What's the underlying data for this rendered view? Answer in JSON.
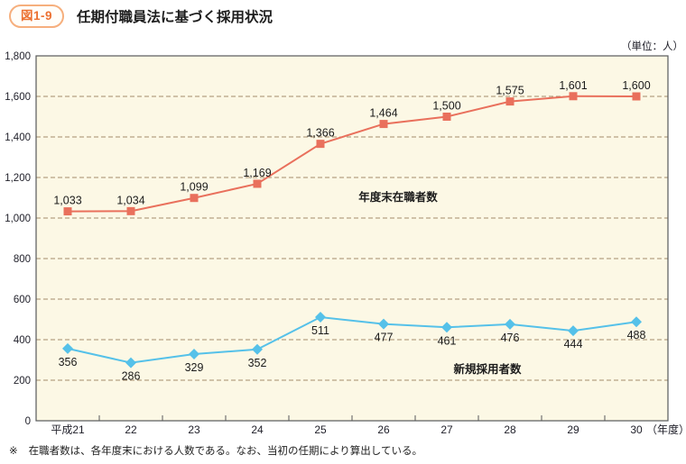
{
  "title": {
    "badge": "図1-9",
    "text": "任期付職員法に基づく採用状況"
  },
  "unit_label": "（単位：人）",
  "x_axis_suffix": "（年度）",
  "footnote": {
    "marker": "※",
    "text": "在職者数は、各年度末における人数である。なお、当初の任期により算出している。"
  },
  "chart_data": {
    "type": "line",
    "categories": [
      "平成21",
      "22",
      "23",
      "24",
      "25",
      "26",
      "27",
      "28",
      "29",
      "30"
    ],
    "series": [
      {
        "name": "年度末在職者数",
        "values": [
          1033,
          1034,
          1099,
          1169,
          1366,
          1464,
          1500,
          1575,
          1601,
          1600
        ],
        "color": "#E9705C",
        "marker": "square",
        "label_position": "above"
      },
      {
        "name": "新規採用者数",
        "values": [
          356,
          286,
          329,
          352,
          511,
          477,
          461,
          476,
          444,
          488
        ],
        "color": "#55C1E9",
        "marker": "diamond",
        "label_position": "below"
      }
    ],
    "ylim": [
      0,
      1800
    ],
    "ytick_step": 200,
    "grid": "horizontal-dashed",
    "legend": "inline-labels",
    "styles": {
      "plot_bg": "#FCF8E5",
      "grid_color": "#A38B6B",
      "border_color": "#58595B",
      "text_color": "#1E1E28",
      "label_color": "#1B1B1B"
    }
  }
}
